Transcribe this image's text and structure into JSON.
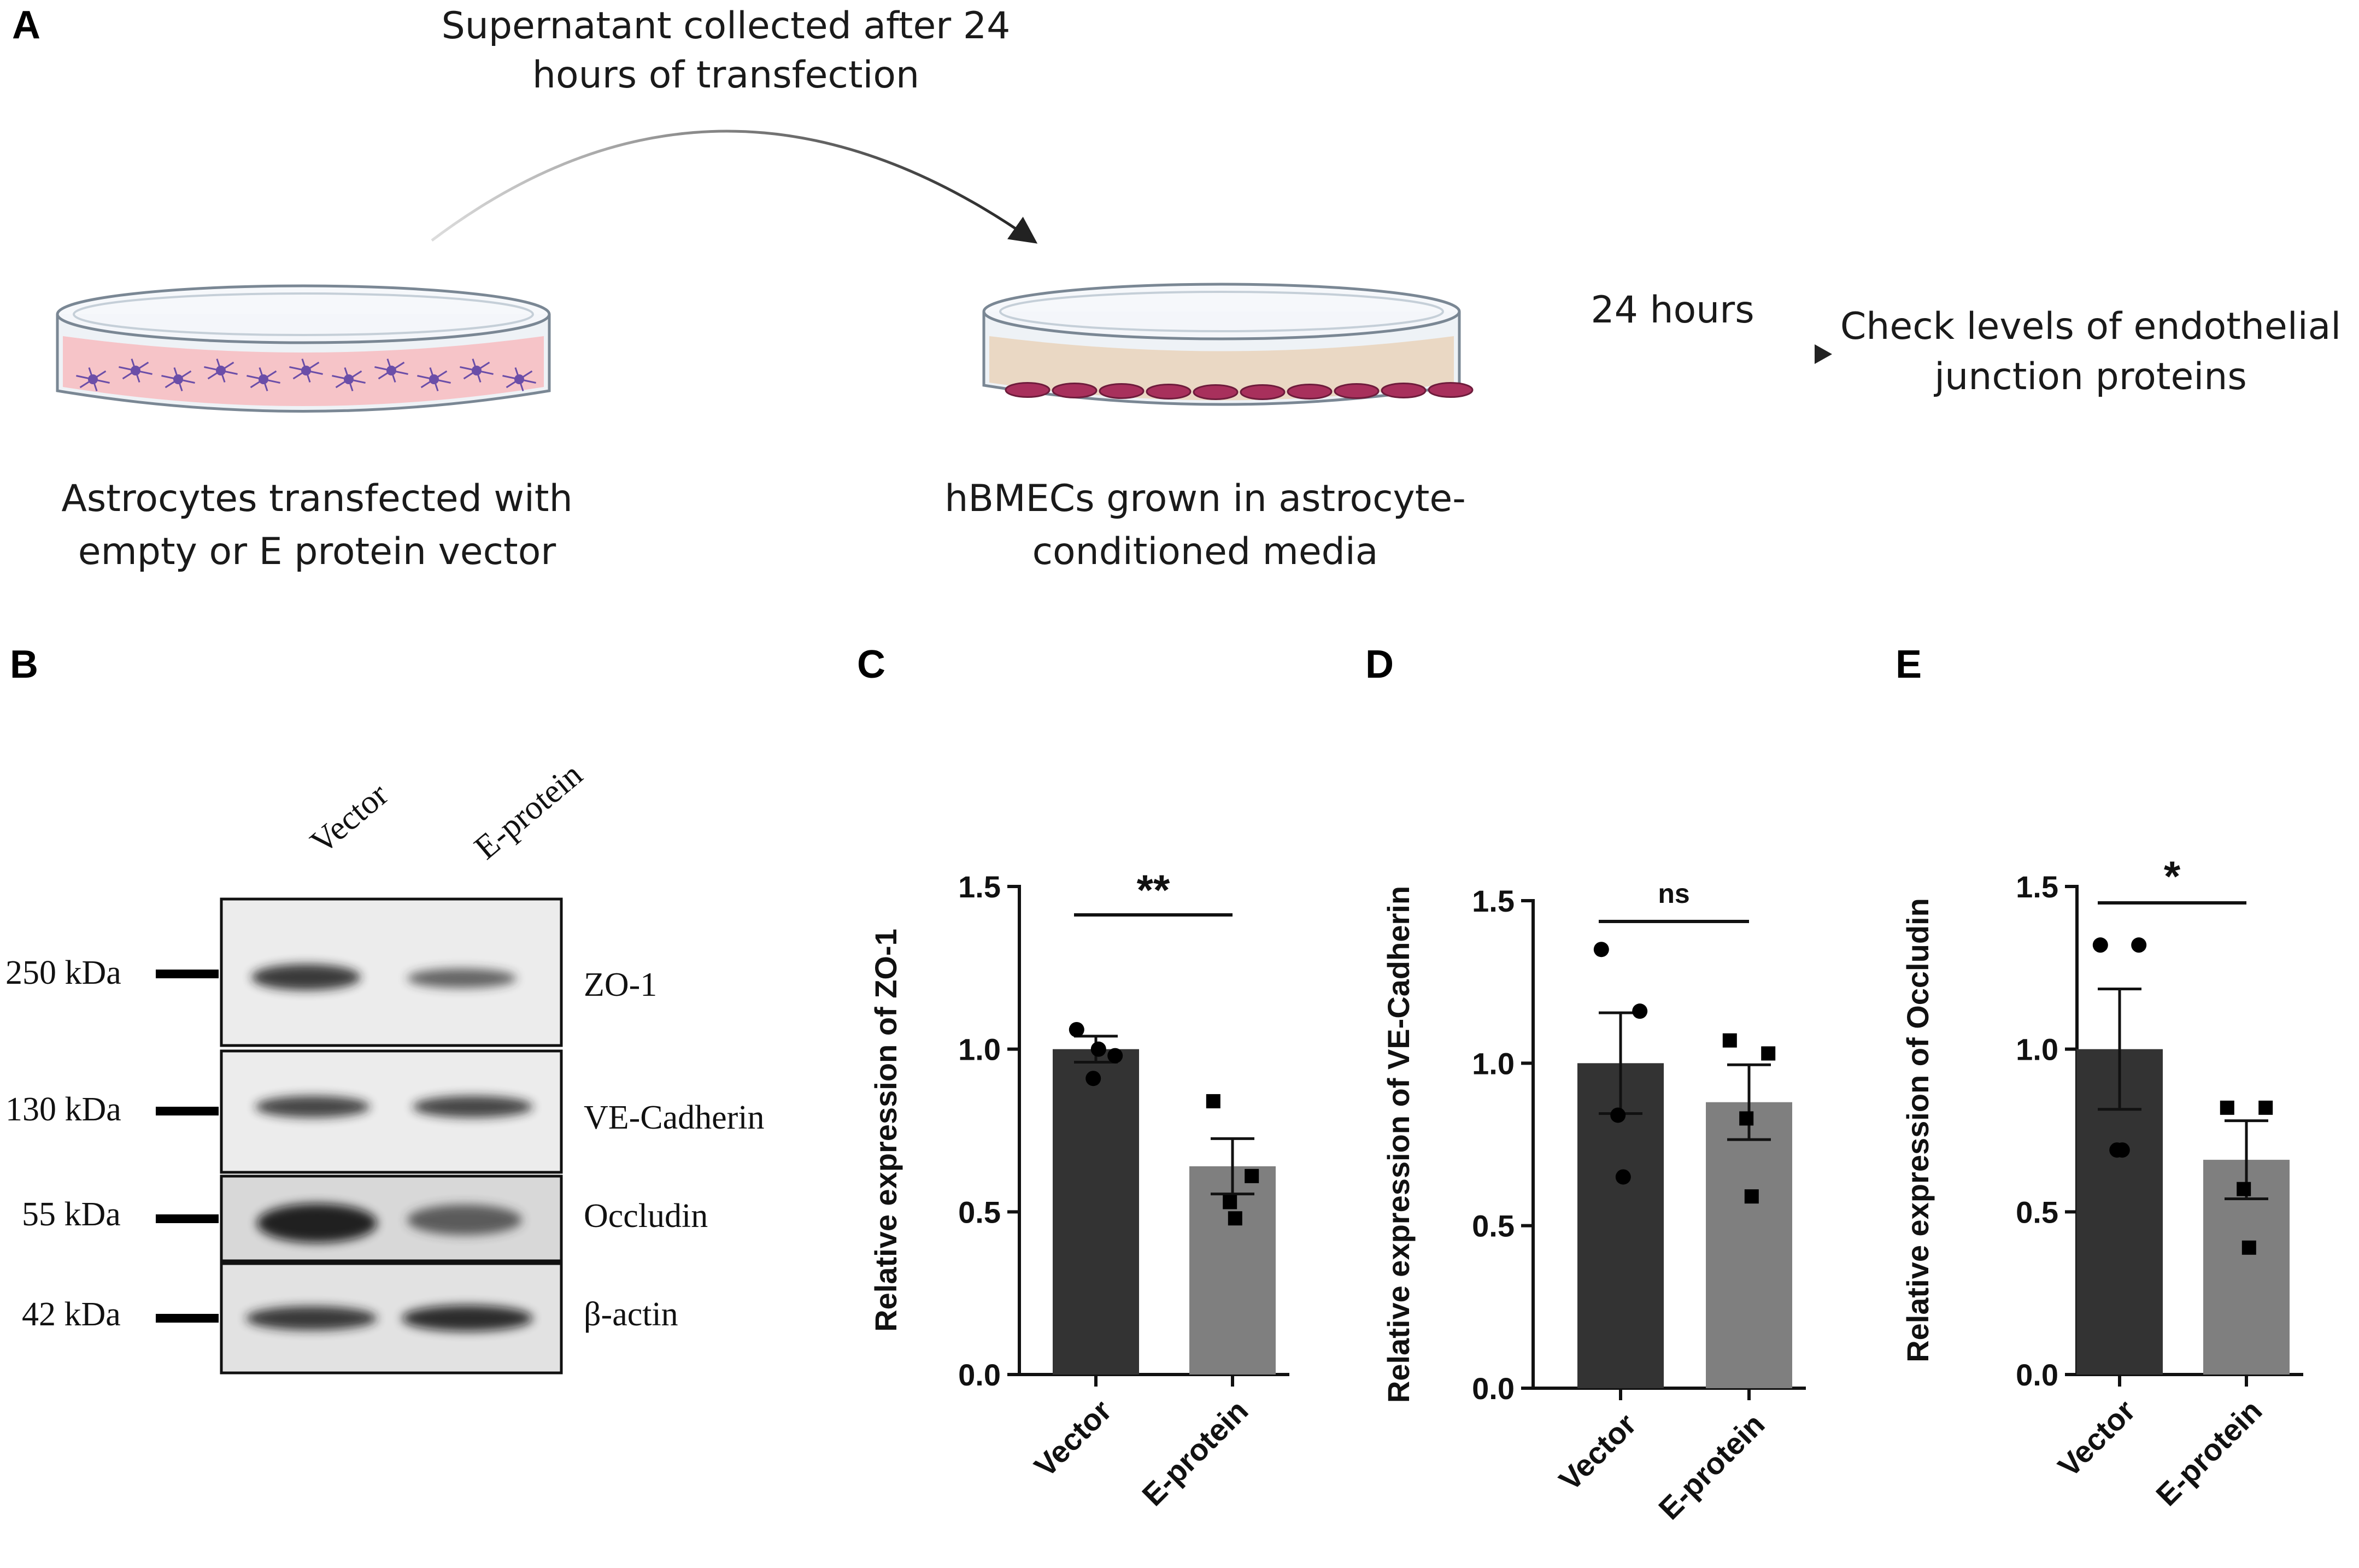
{
  "panels": {
    "a": "A",
    "b": "B",
    "c": "C",
    "d": "D",
    "e": "E"
  },
  "schema": {
    "supernatant_line1": "Supernatant collected after 24",
    "supernatant_line2": "hours of transfection",
    "dish1_line1": "Astrocytes transfected with",
    "dish1_line2": "empty or E protein vector",
    "dish2_line1": "hBMECs grown in astrocyte-",
    "dish2_line2": "conditioned media",
    "time_label": "24 hours",
    "outcome_line1": "Check levels of endothelial",
    "outcome_line2": "junction proteins",
    "colors": {
      "astro_media": "#f6c4c8",
      "astro_cell": "#6b4ea8",
      "hbmec_media": "#ead8c4",
      "hbmec_cell": "#a8305c"
    }
  },
  "blot": {
    "lanes": [
      "Vector",
      "E-protein"
    ],
    "markers": [
      "250 kDa",
      "130 kDa",
      "55 kDa",
      "42 kDa"
    ],
    "proteins": [
      "ZO-1",
      "VE-Cadherin",
      "Occludin",
      "β-actin"
    ]
  },
  "chart_data": [
    {
      "panel": "C",
      "type": "bar",
      "ylabel": "Relative expression of ZO-1",
      "categories": [
        "Vector",
        "E-protein"
      ],
      "values": [
        1.0,
        0.64
      ],
      "sem": [
        0.04,
        0.085
      ],
      "points": [
        [
          1.06,
          0.98,
          0.91,
          1.0
        ],
        [
          0.84,
          0.61,
          0.53,
          0.48
        ]
      ],
      "significance": "**",
      "ylim": [
        0,
        1.5
      ],
      "yticks": [
        "0.0",
        "0.5",
        "1.0",
        "1.5"
      ],
      "bar_colors": [
        "#333333",
        "#7f7f7f"
      ],
      "markers": [
        "circle",
        "square"
      ]
    },
    {
      "panel": "D",
      "type": "bar",
      "ylabel": "Relative expression of VE-Cadherin",
      "categories": [
        "Vector",
        "E-protein"
      ],
      "values": [
        1.0,
        0.88
      ],
      "sem": [
        0.155,
        0.115
      ],
      "points": [
        [
          1.35,
          1.16,
          0.84,
          0.65
        ],
        [
          1.07,
          1.03,
          0.83,
          0.59
        ]
      ],
      "significance": "ns",
      "ylim": [
        0,
        1.5
      ],
      "yticks": [
        "0.0",
        "0.5",
        "1.0",
        "1.5"
      ],
      "bar_colors": [
        "#333333",
        "#7f7f7f"
      ],
      "markers": [
        "circle",
        "square"
      ]
    },
    {
      "panel": "E",
      "type": "bar",
      "ylabel": "Relative expression of Occludin",
      "categories": [
        "Vector",
        "E-protein"
      ],
      "values": [
        1.0,
        0.66
      ],
      "sem": [
        0.185,
        0.12
      ],
      "points": [
        [
          1.32,
          1.32,
          0.69,
          0.69
        ],
        [
          0.82,
          0.82,
          0.57,
          0.39
        ]
      ],
      "significance": "*",
      "ylim": [
        0,
        1.5
      ],
      "yticks": [
        "0.0",
        "0.5",
        "1.0",
        "1.5"
      ],
      "bar_colors": [
        "#333333",
        "#7f7f7f"
      ],
      "markers": [
        "circle",
        "square"
      ]
    }
  ]
}
